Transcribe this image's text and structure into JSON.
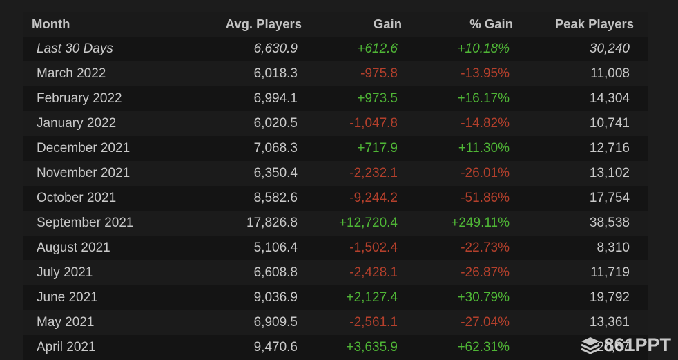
{
  "table": {
    "headers": {
      "month": "Month",
      "avg_players": "Avg. Players",
      "gain": "Gain",
      "pct_gain": "% Gain",
      "peak_players": "Peak Players"
    },
    "rows": [
      {
        "month": "Last 30 Days",
        "avg": "6,630.9",
        "gain": "+612.6",
        "pct": "+10.18%",
        "peak": "30,240",
        "trend": "pos",
        "italic": true
      },
      {
        "month": "March 2022",
        "avg": "6,018.3",
        "gain": "-975.8",
        "pct": "-13.95%",
        "peak": "11,008",
        "trend": "neg"
      },
      {
        "month": "February 2022",
        "avg": "6,994.1",
        "gain": "+973.5",
        "pct": "+16.17%",
        "peak": "14,304",
        "trend": "pos"
      },
      {
        "month": "January 2022",
        "avg": "6,020.5",
        "gain": "-1,047.8",
        "pct": "-14.82%",
        "peak": "10,741",
        "trend": "neg"
      },
      {
        "month": "December 2021",
        "avg": "7,068.3",
        "gain": "+717.9",
        "pct": "+11.30%",
        "peak": "12,716",
        "trend": "pos"
      },
      {
        "month": "November 2021",
        "avg": "6,350.4",
        "gain": "-2,232.1",
        "pct": "-26.01%",
        "peak": "13,102",
        "trend": "neg"
      },
      {
        "month": "October 2021",
        "avg": "8,582.6",
        "gain": "-9,244.2",
        "pct": "-51.86%",
        "peak": "17,754",
        "trend": "neg"
      },
      {
        "month": "September 2021",
        "avg": "17,826.8",
        "gain": "+12,720.4",
        "pct": "+249.11%",
        "peak": "38,538",
        "trend": "pos"
      },
      {
        "month": "August 2021",
        "avg": "5,106.4",
        "gain": "-1,502.4",
        "pct": "-22.73%",
        "peak": "8,310",
        "trend": "neg"
      },
      {
        "month": "July 2021",
        "avg": "6,608.8",
        "gain": "-2,428.1",
        "pct": "-26.87%",
        "peak": "11,719",
        "trend": "neg"
      },
      {
        "month": "June 2021",
        "avg": "9,036.9",
        "gain": "+2,127.4",
        "pct": "+30.79%",
        "peak": "19,792",
        "trend": "pos"
      },
      {
        "month": "May 2021",
        "avg": "6,909.5",
        "gain": "-2,561.1",
        "pct": "-27.04%",
        "peak": "13,361",
        "trend": "neg"
      },
      {
        "month": "April 2021",
        "avg": "9,470.6",
        "gain": "+3,635.9",
        "pct": "+62.31%",
        "peak": "20,67",
        "trend": "pos"
      }
    ]
  },
  "colors": {
    "positive": "#4fb636",
    "negative": "#b5402c",
    "background": "#1c1c1c"
  },
  "watermark": {
    "icon": "layers-icon",
    "text": "861PPT"
  }
}
